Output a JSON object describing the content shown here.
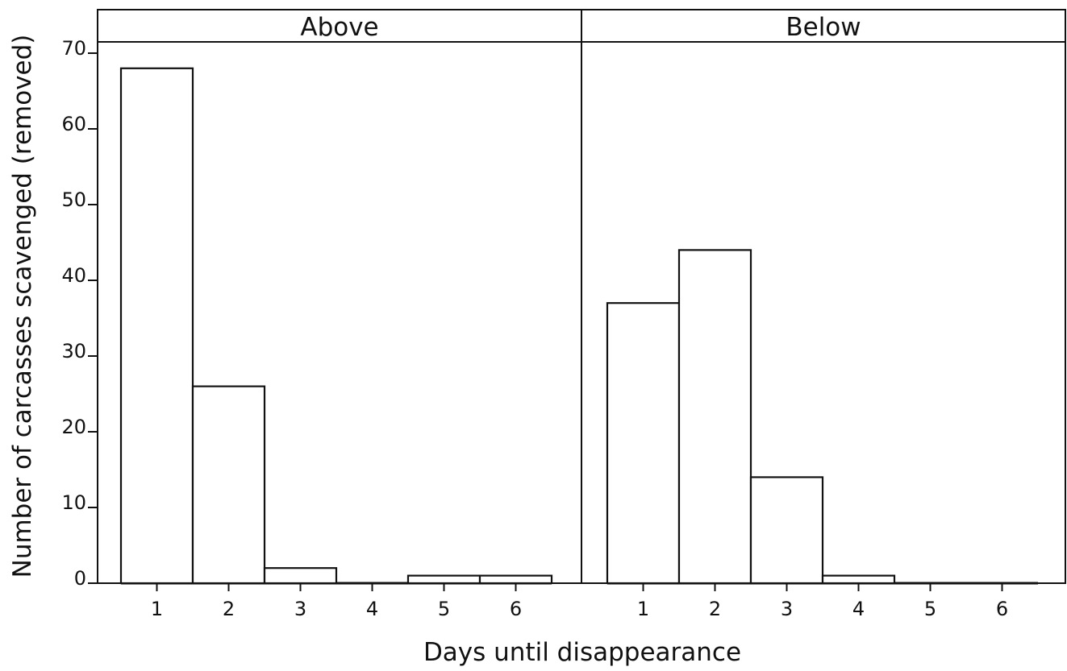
{
  "chart_data": {
    "type": "bar",
    "xlabel": "Days until disappearance",
    "ylabel": "Number of carcasses scavenged (removed)",
    "ylim": [
      0,
      70
    ],
    "yticks": [
      "0",
      "10",
      "20",
      "30",
      "40",
      "50",
      "60",
      "70"
    ],
    "categories": [
      "1",
      "2",
      "3",
      "4",
      "5",
      "6"
    ],
    "grid": false,
    "panels": [
      {
        "name": "Above",
        "values": [
          68,
          26,
          2,
          0,
          1,
          1
        ]
      },
      {
        "name": "Below",
        "values": [
          37,
          44,
          14,
          1,
          0,
          0
        ]
      }
    ]
  }
}
